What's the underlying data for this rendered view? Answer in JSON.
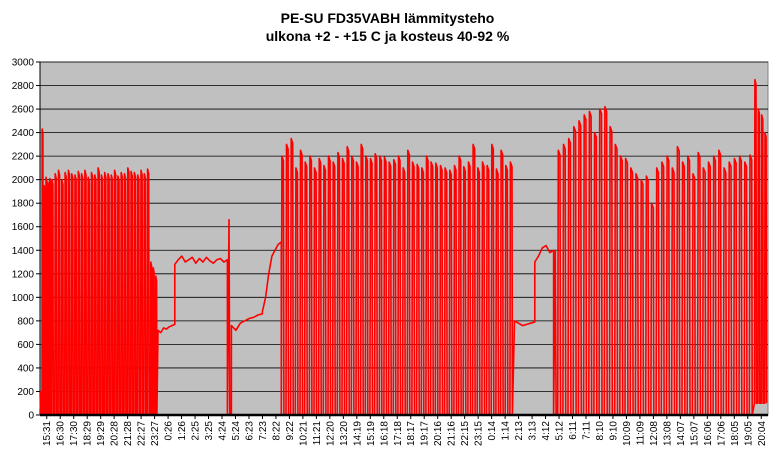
{
  "chart_data": {
    "type": "line",
    "title": "PE-SU FD35VABH lämmitysteho",
    "subtitle": "ulkona +2 - +15 C ja kosteus 40-92 %",
    "xlabel": "",
    "ylabel": "",
    "ylim": [
      0,
      3000
    ],
    "yticks": [
      0,
      200,
      400,
      600,
      800,
      1000,
      1200,
      1400,
      1600,
      1800,
      2000,
      2200,
      2400,
      2600,
      2800,
      3000
    ],
    "grid": "horizontal",
    "legend": "none",
    "plot_background": "#c0c0c0",
    "line_color": "#ff0000",
    "x": [
      "15:31",
      "16:30",
      "17:30",
      "18:29",
      "19:29",
      "20:28",
      "21:28",
      "22:27",
      "23:27",
      "0:26",
      "1:26",
      "2:25",
      "3:25",
      "4:24",
      "5:24",
      "6:23",
      "7:23",
      "8:22",
      "9:22",
      "10:21",
      "11:21",
      "12:20",
      "13:20",
      "14:19",
      "15:19",
      "16:18",
      "17:18",
      "18:17",
      "19:17",
      "20:16",
      "21:16",
      "22:15",
      "23:15",
      "0:14",
      "1:14",
      "2:13",
      "3:13",
      "4:12",
      "5:12",
      "6:11",
      "7:11",
      "8:10",
      "9:10",
      "10:09",
      "11:09",
      "12:08",
      "13:08",
      "14:07",
      "15:07",
      "16:06",
      "17:06",
      "18:05",
      "19:05",
      "20:04"
    ],
    "series": [
      {
        "segments": [
          {
            "from": 0,
            "to": 0.15,
            "type": "spike",
            "peak": 200,
            "low": 0
          },
          {
            "from": 0.15,
            "to": 0.85,
            "type": "cycling",
            "low": 0,
            "peaks": [
              2430,
              1950,
              2020,
              1980,
              2010
            ]
          },
          {
            "from": 0.85,
            "to": 8.2,
            "type": "cycling",
            "low": 0,
            "peaks": [
              2000,
              2050,
              2080,
              2000,
              2060,
              2080,
              2050,
              2040,
              2070,
              2050,
              2080,
              2020,
              2060,
              2040,
              2100,
              2040,
              2060,
              2050,
              2040,
              2080,
              2030,
              2060,
              2050,
              2100,
              2070,
              2060,
              2040,
              2080,
              2050,
              2090
            ]
          },
          {
            "from": 8.2,
            "to": 8.75,
            "type": "cycling",
            "low": 0,
            "peaks": [
              1300,
              1250,
              1180
            ]
          },
          {
            "from": 8.75,
            "to": 10.0,
            "type": "flat",
            "values": [
              720,
              700,
              740,
              730,
              750,
              760,
              770
            ]
          },
          {
            "from": 10.0,
            "to": 13.9,
            "type": "flat",
            "values": [
              1280,
              1320,
              1350,
              1300,
              1320,
              1340,
              1290,
              1330,
              1300,
              1340,
              1310,
              1290,
              1320,
              1330,
              1300,
              1320
            ]
          },
          {
            "from": 13.9,
            "to": 14.2,
            "type": "spike",
            "peak": 1660,
            "low": 0
          },
          {
            "from": 14.2,
            "to": 16.5,
            "type": "flat",
            "values": [
              760,
              720,
              780,
              800,
              820,
              830,
              850,
              860
            ]
          },
          {
            "from": 16.5,
            "to": 17.9,
            "type": "flat",
            "values": [
              880,
              1000,
              1200,
              1350,
              1400,
              1450,
              1470
            ]
          },
          {
            "from": 17.9,
            "to": 35.2,
            "type": "cycling",
            "low": 0,
            "peaks": [
              2200,
              2300,
              2350,
              2100,
              2250,
              2150,
              2200,
              2100,
              2180,
              2120,
              2200,
              2150,
              2230,
              2180,
              2280,
              2200,
              2150,
              2300,
              2200,
              2180,
              2220,
              2200,
              2190,
              2150,
              2170,
              2200,
              2100,
              2250,
              2150,
              2130,
              2100,
              2200,
              2150,
              2140,
              2120,
              2100,
              2080,
              2120,
              2200,
              2110,
              2150,
              2300,
              2100,
              2150,
              2120,
              2300,
              2090,
              2250,
              2120,
              2150
            ]
          },
          {
            "from": 35.2,
            "to": 36.7,
            "type": "flat",
            "values": [
              800,
              780,
              760,
              770,
              780,
              790
            ]
          },
          {
            "from": 36.7,
            "to": 38.1,
            "type": "flat",
            "values": [
              1300,
              1350,
              1420,
              1440,
              1380,
              1400
            ]
          },
          {
            "from": 38.1,
            "to": 38.4,
            "type": "spike",
            "peak": 1400,
            "low": 0
          },
          {
            "from": 38.4,
            "to": 53.0,
            "type": "cycling",
            "low": 0,
            "peaks": [
              2250,
              2300,
              2350,
              2450,
              2500,
              2550,
              2580,
              2400,
              2600,
              2620,
              2450,
              2300,
              2200,
              2180,
              2100,
              2050,
              2000,
              2030,
              1800,
              2100,
              2150,
              2200,
              2100,
              2280,
              2150,
              2200,
              2050,
              2230,
              2100,
              2150,
              2200,
              2250,
              2100,
              2150,
              2180,
              2200,
              2150,
              2210
            ]
          },
          {
            "from": 53.0,
            "to": 54.0,
            "type": "cycling",
            "low": 100,
            "peaks": [
              2850,
              2600,
              2550,
              2400
            ]
          }
        ]
      }
    ]
  },
  "title": "PE-SU FD35VABH lämmitysteho",
  "subtitle": "ulkona +2 - +15 C ja kosteus 40-92 %"
}
